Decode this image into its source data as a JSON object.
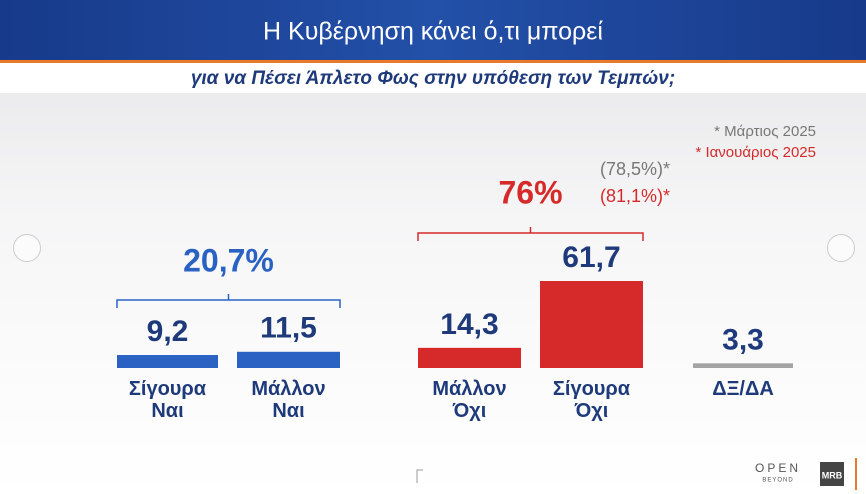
{
  "chart_data": {
    "type": "bar",
    "title": "Η Κυβέρνηση κάνει ό,τι μπορεί",
    "subtitle": "για να Πέσει Άπλετο Φως στην υπόθεση των Τεμπών;",
    "categories": [
      "Σίγουρα Ναι",
      "Μάλλον Ναι",
      "Μάλλον Όχι",
      "Σίγουρα Όχι",
      "ΔΞ/ΔΑ"
    ],
    "values": [
      9.2,
      11.5,
      14.3,
      61.7,
      3.3
    ],
    "value_labels": [
      "9,2",
      "11,5",
      "14,3",
      "61,7",
      "3,3"
    ],
    "colors": [
      "#2a62c4",
      "#2a62c4",
      "#d62a2a",
      "#d62a2a",
      "#a3a3a3"
    ],
    "groups": [
      {
        "value": 20.7,
        "label": "20,7%",
        "color": "#2a62c4"
      },
      {
        "value": 76,
        "label": "76%",
        "color": "#d62a2a"
      }
    ],
    "comparisons": [
      {
        "value": 78.5,
        "label": "(78,5%)*",
        "color": "#777777"
      },
      {
        "value": 81.1,
        "label": "(81,1%)*",
        "color": "#d62a2a"
      }
    ],
    "legend": [
      {
        "label": "* Μάρτιος 2025",
        "color": "#777777"
      },
      {
        "label": "* Ιανουάριος 2025",
        "color": "#d62a2a"
      }
    ],
    "logos": [
      "OPEN",
      "BEYOND",
      "MRB"
    ]
  }
}
